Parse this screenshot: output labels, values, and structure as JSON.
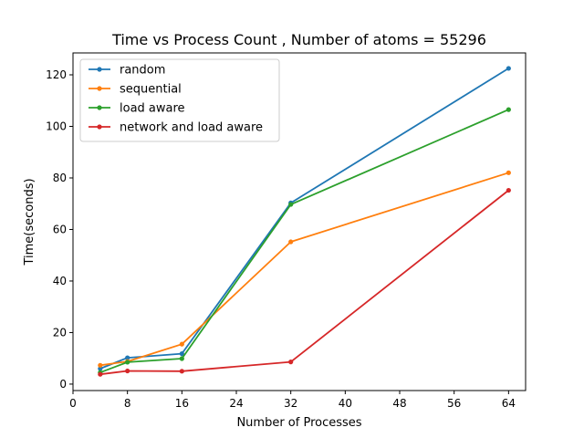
{
  "chart_data": {
    "type": "line",
    "title": "Time vs Process Count , Number of atoms = 55296",
    "xlabel": "Number of Processes",
    "ylabel": "Time(seconds)",
    "xlim": [
      0,
      66.5
    ],
    "ylim": [
      -2.5,
      128.5
    ],
    "xticks": [
      0,
      8,
      16,
      24,
      32,
      40,
      48,
      56,
      64
    ],
    "yticks": [
      0,
      20,
      40,
      60,
      80,
      100,
      120
    ],
    "x": [
      4,
      8,
      16,
      32,
      64
    ],
    "grid": false,
    "legend_position": "upper-left",
    "series": [
      {
        "name": "random",
        "color": "#1f77b4",
        "values": [
          6.0,
          10.2,
          11.8,
          70.3,
          122.5
        ]
      },
      {
        "name": "sequential",
        "color": "#ff7f0e",
        "values": [
          7.3,
          8.8,
          15.5,
          55.2,
          82.0
        ]
      },
      {
        "name": "load aware",
        "color": "#2ca02c",
        "values": [
          4.5,
          8.5,
          9.9,
          69.7,
          106.5
        ]
      },
      {
        "name": "network and load aware",
        "color": "#d62728",
        "values": [
          3.8,
          5.1,
          5.0,
          8.6,
          75.2
        ]
      }
    ]
  }
}
